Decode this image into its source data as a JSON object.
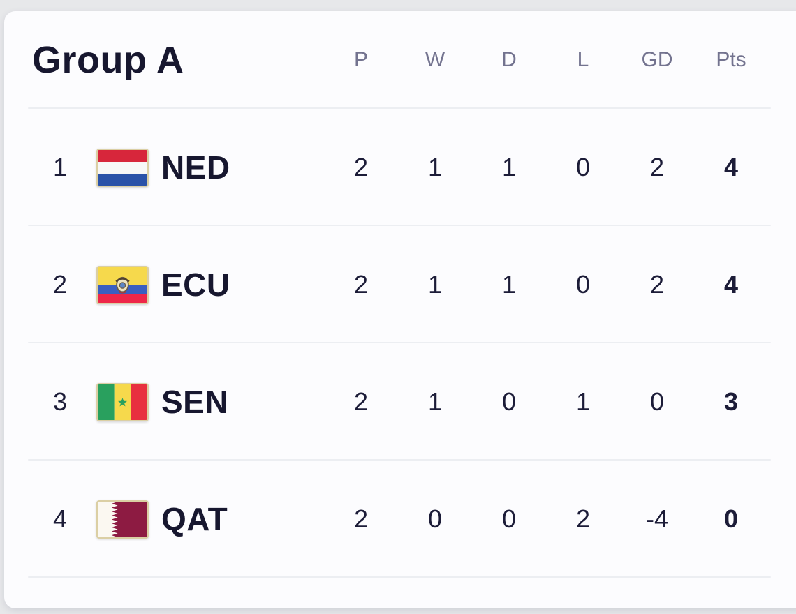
{
  "title": "Group A",
  "columns": [
    "P",
    "W",
    "D",
    "L",
    "GD",
    "Pts"
  ],
  "stat_keys": [
    "p",
    "w",
    "d",
    "l",
    "gd",
    "pts"
  ],
  "rows": [
    {
      "position": "1",
      "flag": "ned",
      "flag_icon": "netherlands-flag",
      "team": "NED",
      "stats": {
        "p": "2",
        "w": "1",
        "d": "1",
        "l": "0",
        "gd": "2",
        "pts": "4"
      }
    },
    {
      "position": "2",
      "flag": "ecu",
      "flag_icon": "ecuador-flag",
      "team": "ECU",
      "stats": {
        "p": "2",
        "w": "1",
        "d": "1",
        "l": "0",
        "gd": "2",
        "pts": "4"
      }
    },
    {
      "position": "3",
      "flag": "sen",
      "flag_icon": "senegal-flag",
      "team": "SEN",
      "stats": {
        "p": "2",
        "w": "1",
        "d": "0",
        "l": "1",
        "gd": "0",
        "pts": "3"
      }
    },
    {
      "position": "4",
      "flag": "qat",
      "flag_icon": "qatar-flag",
      "team": "QAT",
      "stats": {
        "p": "2",
        "w": "0",
        "d": "0",
        "l": "2",
        "gd": "-4",
        "pts": "0"
      }
    }
  ],
  "colors": {
    "page_bg": "#e7e8ea",
    "card_bg": "#fcfcfe",
    "title_text": "#17172f",
    "header_text": "#73738f",
    "cell_text": "#1c1c38",
    "divider": "#eceef2",
    "flag_border": "#dbcfa4"
  }
}
